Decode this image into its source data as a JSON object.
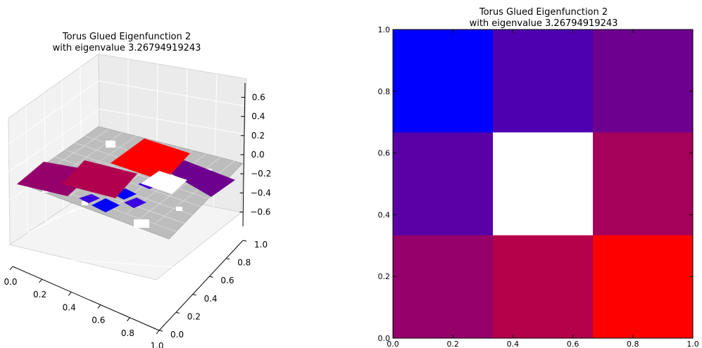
{
  "chart_data": [
    {
      "type": "surface3d",
      "title_line1": "Torus Glued Eigenfunction 2",
      "title_line2": "with eigenvalue 3.26794919243",
      "x_ticks": [
        "0.0",
        "0.2",
        "0.4",
        "0.6",
        "0.8",
        "1.0"
      ],
      "y_ticks": [
        "0.0",
        "0.2",
        "0.4",
        "0.6",
        "0.8",
        "1.0"
      ],
      "z_ticks": [
        "0.6",
        "0.4",
        "0.2",
        "0.0",
        "−0.2",
        "−0.4",
        "−0.6"
      ],
      "zlim": [
        -0.75,
        0.75
      ],
      "grid": true,
      "colors": {
        "red": "#ff0000",
        "crimson": "#b1004e",
        "magenta": "#96006a",
        "purple": "#6e008f",
        "blue": "#0000ff",
        "midblue": "#3c00e0",
        "white": "#ffffff",
        "gray": "#bdbdbd"
      }
    },
    {
      "type": "heatmap",
      "title_line1": "Torus Glued Eigenfunction 2",
      "title_line2": "with eigenvalue 3.26794919243",
      "xlim": [
        0.0,
        1.0
      ],
      "ylim": [
        0.0,
        1.0
      ],
      "x_ticks": [
        "0.0",
        "0.2",
        "0.4",
        "0.6",
        "0.8",
        "1.0"
      ],
      "y_ticks": [
        "0.0",
        "0.2",
        "0.4",
        "0.6",
        "0.8",
        "1.0"
      ],
      "rows_top_to_bottom": [
        [
          "#0000ff",
          "#4e00b1",
          "#6e008f"
        ],
        [
          "#5900a6",
          "#ffffff",
          "#a5005a"
        ],
        [
          "#96006a",
          "#b5004a",
          "#ff0000"
        ]
      ]
    }
  ]
}
